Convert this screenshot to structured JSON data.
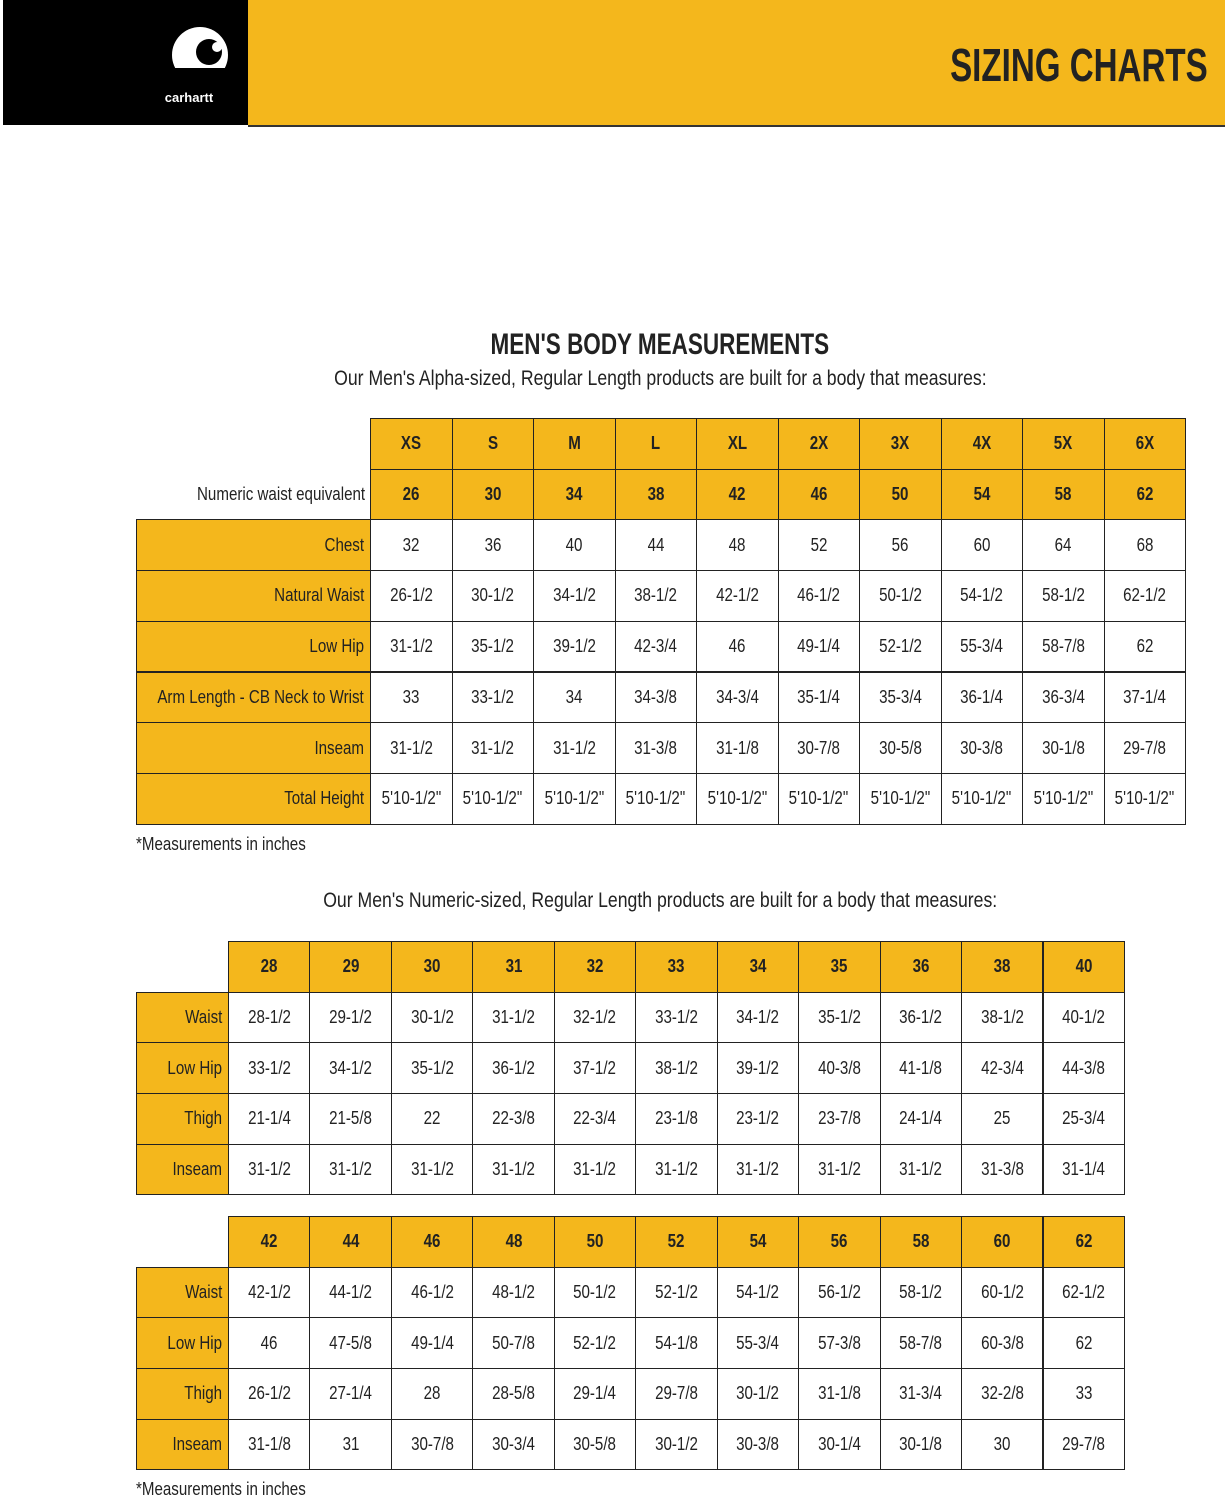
{
  "header": {
    "logo": "carhartt",
    "title": "SIZING CHARTS"
  },
  "alpha_section": {
    "title": "MEN'S BODY MEASUREMENTS",
    "subtitle": "Our Men's Alpha-sized, Regular Length products are built for a body that measures:",
    "table": {
      "sizes": [
        "XS",
        "S",
        "M",
        "L",
        "XL",
        "2X",
        "3X",
        "4X",
        "5X",
        "6X"
      ],
      "waist_label": "Numeric waist equivalent",
      "waist": [
        "26",
        "30",
        "34",
        "38",
        "42",
        "46",
        "50",
        "54",
        "58",
        "62"
      ],
      "rows": [
        {
          "label": "Chest",
          "values": [
            "32",
            "36",
            "40",
            "44",
            "48",
            "52",
            "56",
            "60",
            "64",
            "68"
          ]
        },
        {
          "label": "Natural Waist",
          "values": [
            "26-1/2",
            "30-1/2",
            "34-1/2",
            "38-1/2",
            "42-1/2",
            "46-1/2",
            "50-1/2",
            "54-1/2",
            "58-1/2",
            "62-1/2"
          ]
        },
        {
          "label": "Low Hip",
          "values": [
            "31-1/2",
            "35-1/2",
            "39-1/2",
            "42-3/4",
            "46",
            "49-1/4",
            "52-1/2",
            "55-3/4",
            "58-7/8",
            "62"
          ]
        },
        {
          "label": "Arm Length - CB Neck to Wrist",
          "values": [
            "33",
            "33-1/2",
            "34",
            "34-3/8",
            "34-3/4",
            "35-1/4",
            "35-3/4",
            "36-1/4",
            "36-3/4",
            "37-1/4"
          ]
        },
        {
          "label": "Inseam",
          "values": [
            "31-1/2",
            "31-1/2",
            "31-1/2",
            "31-3/8",
            "31-1/8",
            "30-7/8",
            "30-5/8",
            "30-3/8",
            "30-1/8",
            "29-7/8"
          ]
        },
        {
          "label": "Total Height",
          "values": [
            "5'10-1/2\"",
            "5'10-1/2\"",
            "5'10-1/2\"",
            "5'10-1/2\"",
            "5'10-1/2\"",
            "5'10-1/2\"",
            "5'10-1/2\"",
            "5'10-1/2\"",
            "5'10-1/2\"",
            "5'10-1/2\""
          ]
        }
      ]
    },
    "note": "*Measurements in inches"
  },
  "numeric_section": {
    "subtitle": "Our Men's Numeric-sized, Regular Length products are built for a body that measures:",
    "tables": [
      {
        "sizes": [
          "28",
          "29",
          "30",
          "31",
          "32",
          "33",
          "34",
          "35",
          "36",
          "38",
          "40"
        ],
        "rows": [
          {
            "label": "Waist",
            "values": [
              "28-1/2",
              "29-1/2",
              "30-1/2",
              "31-1/2",
              "32-1/2",
              "33-1/2",
              "34-1/2",
              "35-1/2",
              "36-1/2",
              "38-1/2",
              "40-1/2"
            ]
          },
          {
            "label": "Low Hip",
            "values": [
              "33-1/2",
              "34-1/2",
              "35-1/2",
              "36-1/2",
              "37-1/2",
              "38-1/2",
              "39-1/2",
              "40-3/8",
              "41-1/8",
              "42-3/4",
              "44-3/8"
            ]
          },
          {
            "label": "Thigh",
            "values": [
              "21-1/4",
              "21-5/8",
              "22",
              "22-3/8",
              "22-3/4",
              "23-1/8",
              "23-1/2",
              "23-7/8",
              "24-1/4",
              "25",
              "25-3/4"
            ]
          },
          {
            "label": "Inseam",
            "values": [
              "31-1/2",
              "31-1/2",
              "31-1/2",
              "31-1/2",
              "31-1/2",
              "31-1/2",
              "31-1/2",
              "31-1/2",
              "31-1/2",
              "31-3/8",
              "31-1/4"
            ]
          }
        ]
      },
      {
        "sizes": [
          "42",
          "44",
          "46",
          "48",
          "50",
          "52",
          "54",
          "56",
          "58",
          "60",
          "62"
        ],
        "rows": [
          {
            "label": "Waist",
            "values": [
              "42-1/2",
              "44-1/2",
              "46-1/2",
              "48-1/2",
              "50-1/2",
              "52-1/2",
              "54-1/2",
              "56-1/2",
              "58-1/2",
              "60-1/2",
              "62-1/2"
            ]
          },
          {
            "label": "Low Hip",
            "values": [
              "46",
              "47-5/8",
              "49-1/4",
              "50-7/8",
              "52-1/2",
              "54-1/8",
              "55-3/4",
              "57-3/8",
              "58-7/8",
              "60-3/8",
              "62"
            ]
          },
          {
            "label": "Thigh",
            "values": [
              "26-1/2",
              "27-1/4",
              "28",
              "28-5/8",
              "29-1/4",
              "29-7/8",
              "30-1/2",
              "31-1/8",
              "31-3/4",
              "32-2/8",
              "33"
            ]
          },
          {
            "label": "Inseam",
            "values": [
              "31-1/8",
              "31",
              "30-7/8",
              "30-3/4",
              "30-5/8",
              "30-1/2",
              "30-3/8",
              "30-1/4",
              "30-1/8",
              "30",
              "29-7/8"
            ]
          }
        ]
      }
    ],
    "note": "*Measurements in inches"
  }
}
